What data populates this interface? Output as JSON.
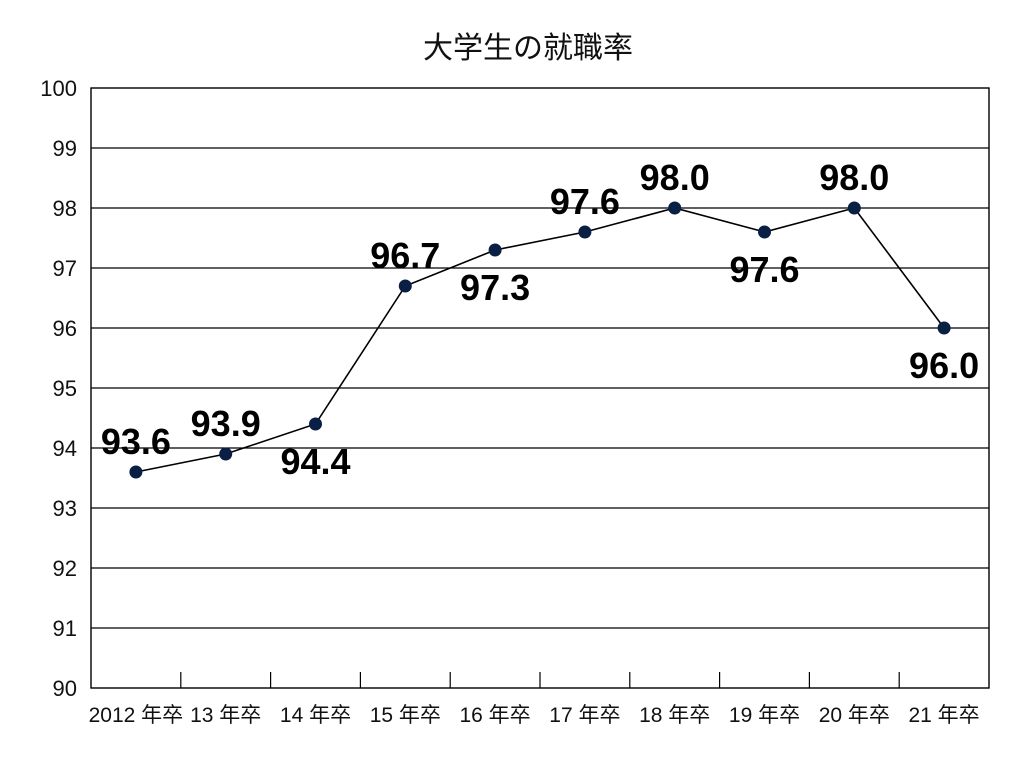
{
  "chart_data": {
    "type": "line",
    "title": "大学生の就職率",
    "categories": [
      "2012 年卒",
      "13 年卒",
      "14 年卒",
      "15 年卒",
      "16 年卒",
      "17 年卒",
      "18 年卒",
      "19 年卒",
      "20 年卒",
      "21 年卒"
    ],
    "series": [
      {
        "values": [
          93.6,
          93.9,
          94.4,
          96.7,
          97.3,
          97.6,
          98.0,
          97.6,
          98.0,
          96.0
        ],
        "labels": [
          "93.6",
          "93.9",
          "94.4",
          "96.7",
          "97.3",
          "97.6",
          "98.0",
          "97.6",
          "98.0",
          "96.0"
        ],
        "color": "#0a1f44"
      }
    ],
    "ylim": [
      90,
      100
    ],
    "yticks": [
      90,
      91,
      92,
      93,
      94,
      95,
      96,
      97,
      98,
      99,
      100
    ],
    "xlabel": "",
    "ylabel": "",
    "grid": true,
    "legend": "none"
  }
}
